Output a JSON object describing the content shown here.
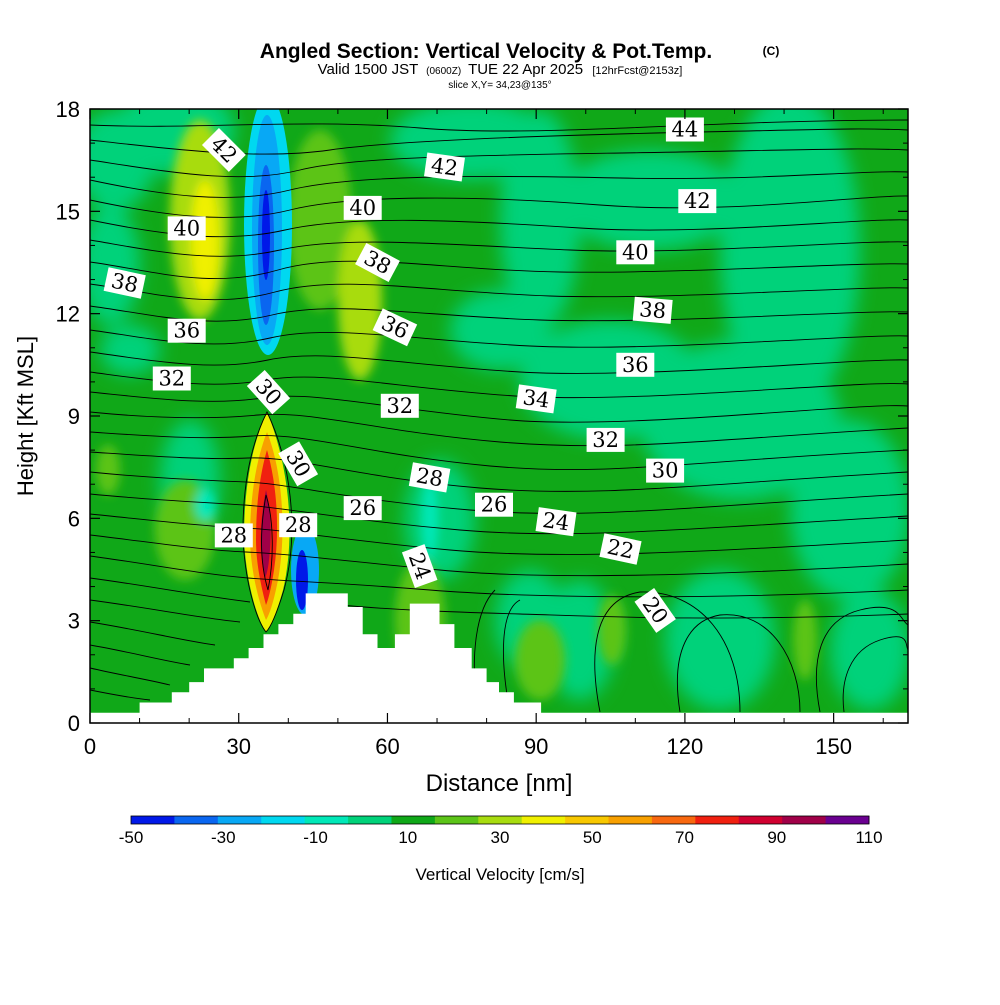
{
  "header": {
    "title": "Angled Section: Vertical Velocity & Pot.Temp.",
    "copyright": "(C)",
    "valid_prefix": "Valid 1500 JST",
    "valid_zulu": "(0600Z)",
    "valid_date": "TUE 22 Apr 2025",
    "forecast": "[12hrFcst@2153z]",
    "slice": "slice X,Y= 34,23@135°"
  },
  "chart_data": {
    "type": "heatmap",
    "xlabel": "Distance [nm]",
    "ylabel": "Height [Kft MSL]",
    "xlim": [
      0,
      165
    ],
    "ylim": [
      0,
      18
    ],
    "x_ticks": [
      "0",
      "30",
      "60",
      "90",
      "120",
      "150"
    ],
    "x_tick_values": [
      0,
      30,
      60,
      90,
      120,
      150
    ],
    "y_ticks": [
      "0",
      "3",
      "6",
      "9",
      "12",
      "15",
      "18"
    ],
    "y_tick_values": [
      0,
      3,
      6,
      9,
      12,
      15,
      18
    ],
    "colorbar": {
      "label": "Vertical Velocity [cm/s]",
      "tick_labels": [
        "-50",
        "-30",
        "-10",
        "10",
        "30",
        "50",
        "70",
        "90",
        "110"
      ],
      "bounds": [
        -50,
        -40,
        -30,
        -20,
        -10,
        0,
        10,
        20,
        30,
        40,
        50,
        60,
        70,
        80,
        90,
        100,
        110
      ],
      "colors": [
        "#0018e8",
        "#0a66f0",
        "#08a8f5",
        "#00d8f0",
        "#00e8b8",
        "#00d27a",
        "#10a818",
        "#5cc418",
        "#a8dc10",
        "#f0f000",
        "#f8c800",
        "#f8a000",
        "#f86810",
        "#f02010",
        "#d00030",
        "#a00048",
        "#6a0090"
      ]
    },
    "contour_labels": [
      {
        "text": "44",
        "x": 120,
        "y": 17.4,
        "angle": 0
      },
      {
        "text": "42",
        "x": 27,
        "y": 16.8,
        "angle": 45
      },
      {
        "text": "42",
        "x": 71.5,
        "y": 16.3,
        "angle": 8
      },
      {
        "text": "42",
        "x": 122.5,
        "y": 15.3,
        "angle": 0
      },
      {
        "text": "40",
        "x": 19.5,
        "y": 14.5,
        "angle": 0
      },
      {
        "text": "40",
        "x": 55,
        "y": 15.1,
        "angle": 0
      },
      {
        "text": "40",
        "x": 110,
        "y": 13.8,
        "angle": 0
      },
      {
        "text": "38",
        "x": 7,
        "y": 12.9,
        "angle": 12
      },
      {
        "text": "38",
        "x": 58,
        "y": 13.5,
        "angle": 28
      },
      {
        "text": "38",
        "x": 113.5,
        "y": 12.1,
        "angle": 5
      },
      {
        "text": "36",
        "x": 19.5,
        "y": 11.5,
        "angle": 0
      },
      {
        "text": "36",
        "x": 61.5,
        "y": 11.6,
        "angle": 25
      },
      {
        "text": "36",
        "x": 110,
        "y": 10.5,
        "angle": 0
      },
      {
        "text": "32",
        "x": 16.5,
        "y": 10.1,
        "angle": 0
      },
      {
        "text": "30",
        "x": 36,
        "y": 9.7,
        "angle": 48
      },
      {
        "text": "32",
        "x": 62.5,
        "y": 9.3,
        "angle": 0
      },
      {
        "text": "34",
        "x": 90,
        "y": 9.5,
        "angle": 8
      },
      {
        "text": "32",
        "x": 104,
        "y": 8.3,
        "angle": 0
      },
      {
        "text": "30",
        "x": 116,
        "y": 7.4,
        "angle": 0
      },
      {
        "text": "30",
        "x": 42,
        "y": 7.6,
        "angle": 60
      },
      {
        "text": "28",
        "x": 68.5,
        "y": 7.2,
        "angle": 10
      },
      {
        "text": "26",
        "x": 55,
        "y": 6.3,
        "angle": 0
      },
      {
        "text": "26",
        "x": 81.5,
        "y": 6.4,
        "angle": 0
      },
      {
        "text": "24",
        "x": 94,
        "y": 5.9,
        "angle": 8
      },
      {
        "text": "22",
        "x": 107,
        "y": 5.1,
        "angle": 12
      },
      {
        "text": "28",
        "x": 29,
        "y": 5.5,
        "angle": 0
      },
      {
        "text": "28",
        "x": 42,
        "y": 5.8,
        "angle": 0
      },
      {
        "text": "24",
        "x": 66.5,
        "y": 4.6,
        "angle": 70
      },
      {
        "text": "20",
        "x": 114,
        "y": 3.3,
        "angle": 55
      }
    ],
    "terrain": [
      [
        0,
        0.3
      ],
      [
        10,
        0.3
      ],
      [
        10,
        0.6
      ],
      [
        16.5,
        0.6
      ],
      [
        16.5,
        0.9
      ],
      [
        20,
        0.9
      ],
      [
        20,
        1.2
      ],
      [
        23,
        1.2
      ],
      [
        23,
        1.6
      ],
      [
        29,
        1.6
      ],
      [
        29,
        1.9
      ],
      [
        32,
        1.9
      ],
      [
        32,
        2.2
      ],
      [
        35,
        2.2
      ],
      [
        35,
        2.6
      ],
      [
        38,
        2.6
      ],
      [
        38,
        2.9
      ],
      [
        41,
        2.9
      ],
      [
        41,
        3.2
      ],
      [
        43.5,
        3.2
      ],
      [
        43.5,
        3.8
      ],
      [
        52,
        3.8
      ],
      [
        52,
        3.4
      ],
      [
        55,
        3.4
      ],
      [
        55,
        2.6
      ],
      [
        58,
        2.6
      ],
      [
        58,
        2.2
      ],
      [
        61.5,
        2.2
      ],
      [
        61.5,
        2.6
      ],
      [
        64.5,
        2.6
      ],
      [
        64.5,
        3.5
      ],
      [
        70.5,
        3.5
      ],
      [
        70.5,
        2.9
      ],
      [
        73.5,
        2.9
      ],
      [
        73.5,
        2.2
      ],
      [
        77,
        2.2
      ],
      [
        77,
        1.6
      ],
      [
        80,
        1.6
      ],
      [
        80,
        1.2
      ],
      [
        82.5,
        1.2
      ],
      [
        82.5,
        0.9
      ],
      [
        85.5,
        0.9
      ],
      [
        85.5,
        0.6
      ],
      [
        91,
        0.6
      ],
      [
        91,
        0.3
      ],
      [
        165,
        0.3
      ]
    ]
  }
}
